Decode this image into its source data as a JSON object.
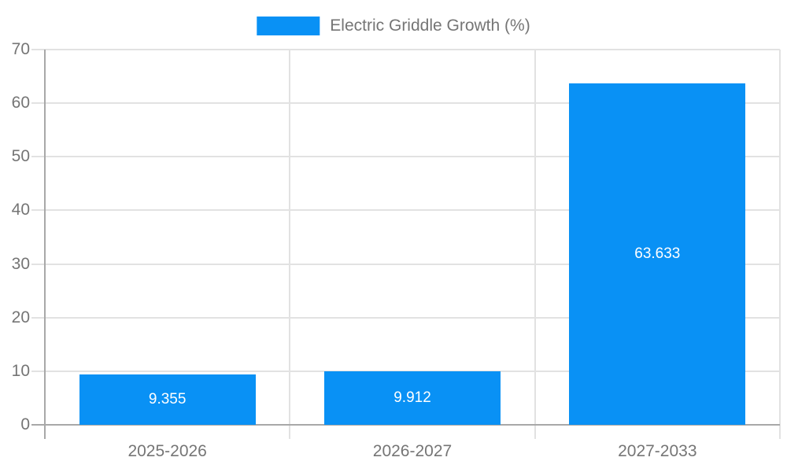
{
  "colors": {
    "bar": "#0991f5",
    "grid": "#e2e2e2",
    "axis": "#a8a8a8",
    "text": "#757575",
    "value_text": "#ffffff",
    "background": "#ffffff"
  },
  "chart_data": {
    "type": "bar",
    "categories": [
      "2025-2026",
      "2026-2027",
      "2027-2033"
    ],
    "values": [
      9.355,
      9.912,
      63.633
    ],
    "value_labels": [
      "9.355",
      "9.912",
      "63.633"
    ],
    "legend": [
      "Electric Griddle Growth (%)"
    ],
    "title": "",
    "xlabel": "",
    "ylabel": "",
    "ylim": [
      0,
      70
    ],
    "yticks": [
      0,
      10,
      20,
      30,
      40,
      50,
      60,
      70
    ],
    "grid": true,
    "legend_position": "top-center",
    "bar_color": "#0991f5",
    "value_label_position": "inside-center"
  }
}
